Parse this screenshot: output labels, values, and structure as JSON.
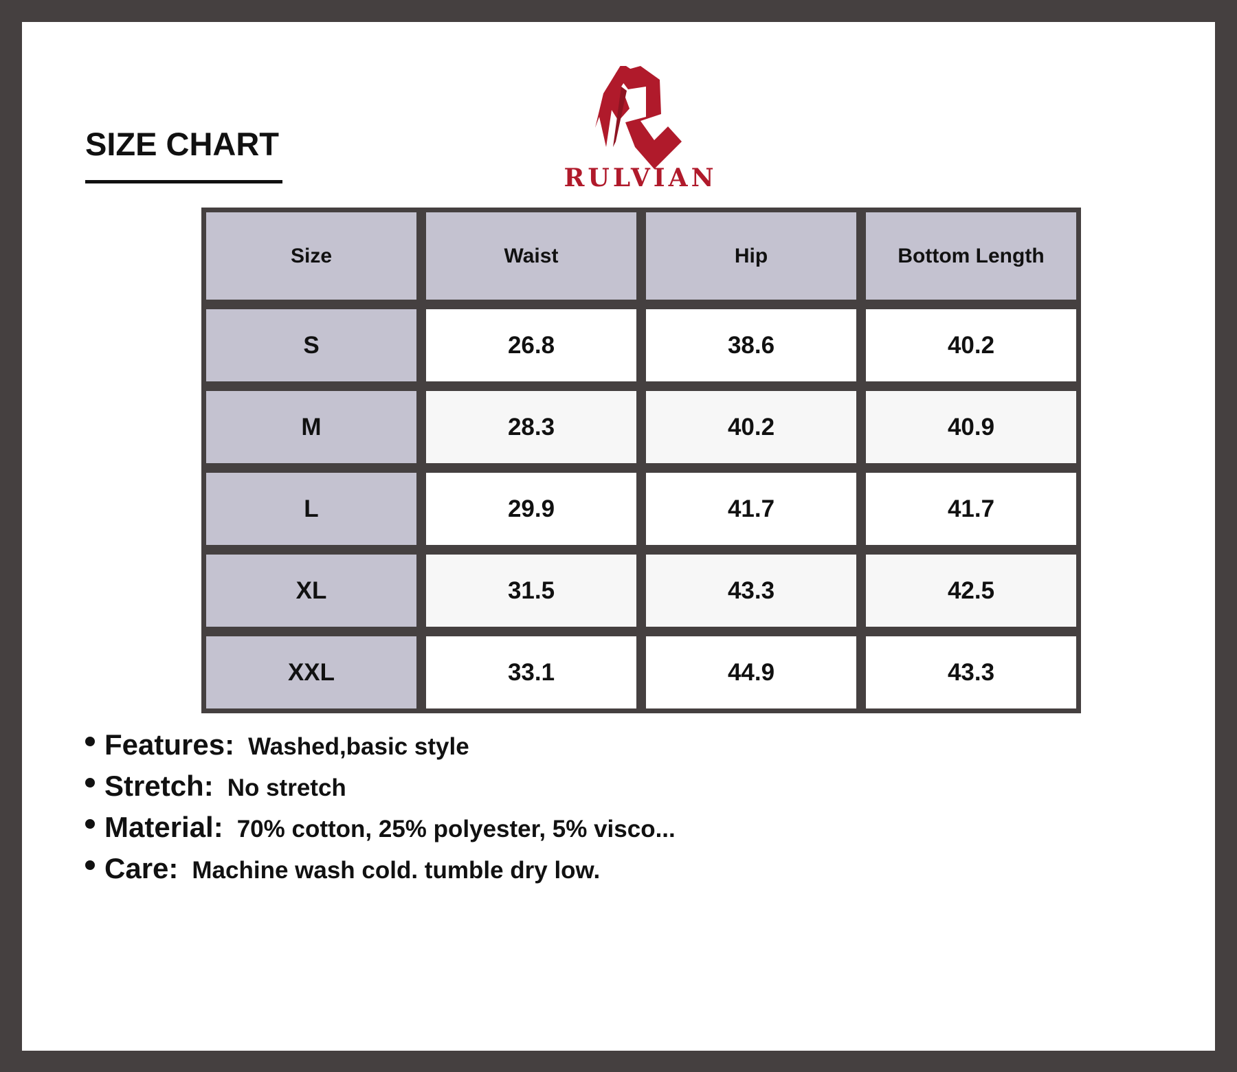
{
  "title": "SIZE CHART",
  "brand": {
    "name": "RULVIAN",
    "color": "#b01a2b"
  },
  "table": {
    "headers": [
      "Size",
      "Waist",
      "Hip",
      "Bottom Length"
    ],
    "rows": [
      [
        "S",
        "26.8",
        "38.6",
        "40.2"
      ],
      [
        "M",
        "28.3",
        "40.2",
        "40.9"
      ],
      [
        "L",
        "29.9",
        "41.7",
        "41.7"
      ],
      [
        "XL",
        "31.5",
        "43.3",
        "42.5"
      ],
      [
        "XXL",
        "33.1",
        "44.9",
        "43.3"
      ]
    ]
  },
  "features": [
    {
      "label": "Features:",
      "value": "Washed,basic style"
    },
    {
      "label": "Stretch:",
      "value": "No stretch"
    },
    {
      "label": "Material:",
      "value": "70% cotton, 25% polyester, 5% visco..."
    },
    {
      "label": "Care:",
      "value": "Machine wash cold. tumble dry low."
    }
  ]
}
